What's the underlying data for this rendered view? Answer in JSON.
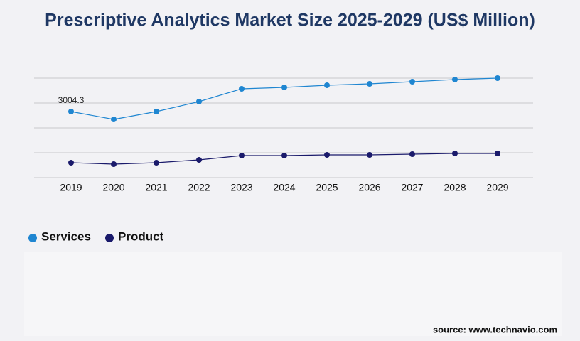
{
  "chart_data": {
    "type": "line",
    "title": "Prescriptive Analytics Market Size 2025-2029 (US$ Million)",
    "categories": [
      "2019",
      "2020",
      "2021",
      "2022",
      "2023",
      "2024",
      "2025",
      "2026",
      "2027",
      "2028",
      "2029"
    ],
    "series": [
      {
        "name": "Services",
        "color": "#1f86d1",
        "values": [
          3004.3,
          2649,
          3004,
          3456,
          4038,
          4102,
          4199,
          4264,
          4361,
          4458,
          4522
        ],
        "value_labels": [
          "3004.3",
          null,
          null,
          null,
          null,
          null,
          null,
          null,
          null,
          null,
          null
        ]
      },
      {
        "name": "Product",
        "color": "#1a1a6b",
        "values": [
          678,
          614,
          678,
          808,
          1001,
          1001,
          1034,
          1034,
          1066,
          1098,
          1098
        ]
      }
    ],
    "ylim": [
      0,
      4522
    ],
    "grid": true,
    "source": "source: www.technavio.com"
  }
}
